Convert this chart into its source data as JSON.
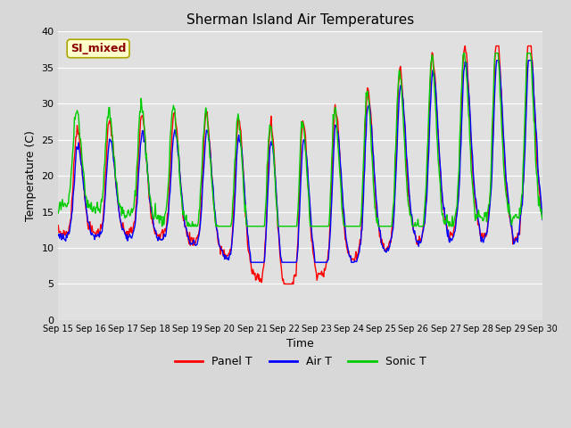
{
  "title": "Sherman Island Air Temperatures",
  "xlabel": "Time",
  "ylabel": "Temperature (C)",
  "ylim": [
    0,
    40
  ],
  "yticks": [
    0,
    5,
    10,
    15,
    20,
    25,
    30,
    35,
    40
  ],
  "xtick_labels": [
    "Sep 15",
    "Sep 16",
    "Sep 17",
    "Sep 18",
    "Sep 19",
    "Sep 20",
    "Sep 21",
    "Sep 22",
    "Sep 23",
    "Sep 24",
    "Sep 25",
    "Sep 26",
    "Sep 27",
    "Sep 28",
    "Sep 29",
    "Sep 30"
  ],
  "annotation_text": "SI_mixed",
  "annotation_bg": "#ffffcc",
  "annotation_color": "#8b0000",
  "panel_color": "#ff0000",
  "air_color": "#0000ff",
  "sonic_color": "#00cc00",
  "legend_entries": [
    "Panel T",
    "Air T",
    "Sonic T"
  ],
  "plot_bg_color": "#e0e0e0",
  "fig_bg_color": "#d8d8d8",
  "grid_color": "#ffffff",
  "line_width": 1.0,
  "figsize": [
    6.4,
    4.8
  ],
  "dpi": 100
}
